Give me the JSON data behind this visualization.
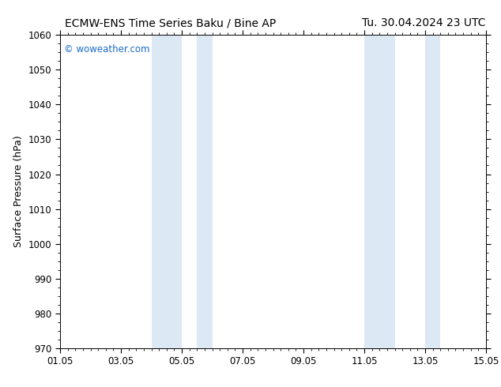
{
  "title_left": "ECMW-ENS Time Series Baku / Bine AP",
  "title_right": "Tu. 30.04.2024 23 UTC",
  "ylabel": "Surface Pressure (hPa)",
  "xlabel_ticks": [
    "01.05",
    "03.05",
    "05.05",
    "07.05",
    "09.05",
    "11.05",
    "13.05",
    "15.05"
  ],
  "x_positions": [
    0,
    2,
    4,
    6,
    8,
    10,
    12,
    14
  ],
  "xlim": [
    0,
    14
  ],
  "ylim": [
    970,
    1060
  ],
  "yticks": [
    970,
    980,
    990,
    1000,
    1010,
    1020,
    1030,
    1040,
    1050,
    1060
  ],
  "background_color": "#ffffff",
  "plot_bg_color": "#ffffff",
  "shaded_regions": [
    {
      "xstart": 3.0,
      "xend": 4.0
    },
    {
      "xstart": 4.5,
      "xend": 5.0
    },
    {
      "xstart": 10.0,
      "xend": 11.0
    },
    {
      "xstart": 12.0,
      "xend": 12.5
    }
  ],
  "shade_color": "#dce9f5",
  "watermark_text": "© woweather.com",
  "watermark_color": "#1a6bcc",
  "title_fontsize": 10,
  "tick_fontsize": 8.5,
  "ylabel_fontsize": 9
}
